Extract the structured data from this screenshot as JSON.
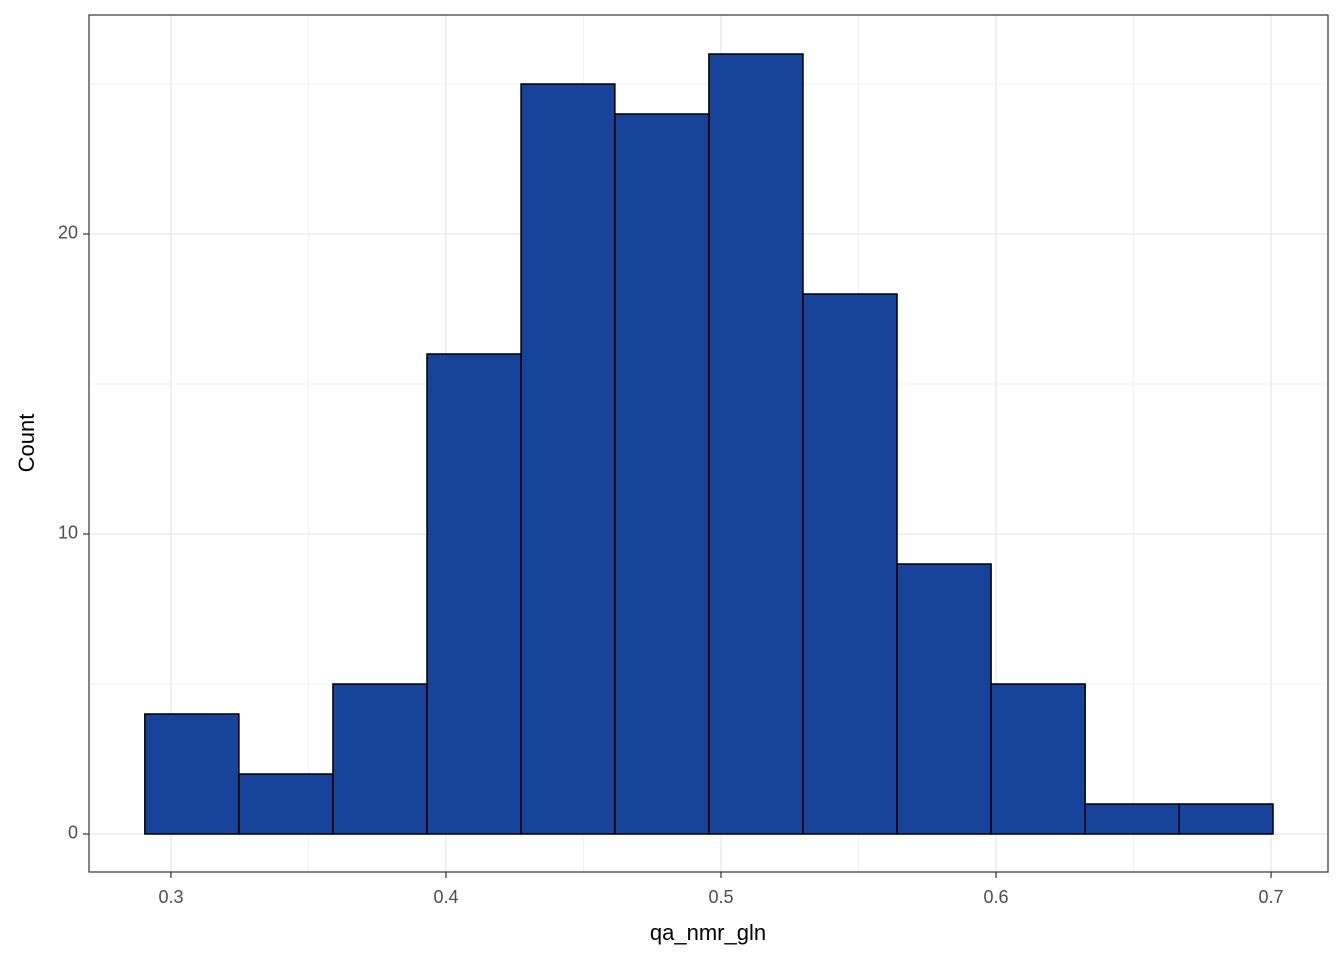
{
  "chart_data": {
    "type": "histogram",
    "x_label": "qa_nmr_gln",
    "y_label": "Count",
    "bins": [
      0.2905,
      0.3247,
      0.3589,
      0.3931,
      0.4273,
      0.4614,
      0.4956,
      0.5298,
      0.564,
      0.5982,
      0.6324,
      0.6666,
      0.7007
    ],
    "counts": [
      4,
      2,
      5,
      16,
      25,
      24,
      26,
      18,
      9,
      5,
      1,
      1
    ],
    "color": "#18439a",
    "edge_color": "#000000",
    "xlim": [
      0.2702,
      0.7207
    ],
    "ylim": [
      -1.267,
      27.3
    ],
    "xticks": [
      0.3,
      0.4,
      0.5,
      0.6,
      0.7
    ],
    "yticks": [
      0,
      10,
      20
    ],
    "xticks_minor": [
      0.35,
      0.45,
      0.55,
      0.65
    ],
    "yticks_minor": [
      5,
      15,
      25
    ],
    "grid": true
  }
}
